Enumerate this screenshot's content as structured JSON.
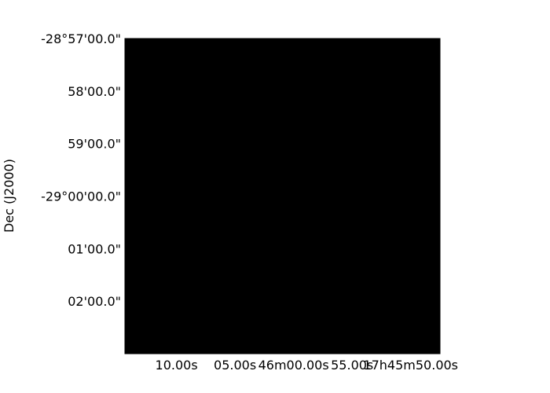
{
  "chart_data": {
    "type": "image",
    "projection": "sky coordinates (RA / Dec)",
    "image_fill": "black",
    "colors": {
      "image": "#000000",
      "frame": "#000000",
      "background": "#ffffff",
      "text": "#000000"
    },
    "xlabel": "",
    "ylabel": "Dec (J2000)",
    "x_ticks": [
      {
        "label": "10.00s",
        "ra_seconds": 10.0
      },
      {
        "label": "05.00s",
        "ra_seconds": 5.0
      },
      {
        "label": "46m00.00s",
        "ra_seconds": 0.0
      },
      {
        "label": "55.00s",
        "ra_seconds": -5.0
      },
      {
        "label": "17h45m50.00s",
        "ra_seconds": -10.0
      }
    ],
    "xlim_ra_seconds": [
      14.4,
      -12.5
    ],
    "y_ticks": [
      {
        "label": "-28°57'00.0\"",
        "dec_arcmin": -57.0
      },
      {
        "label": "58'00.0\"",
        "dec_arcmin": -58.0
      },
      {
        "label": "59'00.0\"",
        "dec_arcmin": -59.0
      },
      {
        "label": "-29°00'00.0\"",
        "dec_arcmin": -60.0
      },
      {
        "label": "01'00.0\"",
        "dec_arcmin": -61.0
      },
      {
        "label": "02'00.0\"",
        "dec_arcmin": -62.0
      }
    ],
    "ylim_dec_arcmin": [
      -63.0,
      -57.0
    ],
    "grid": false
  }
}
